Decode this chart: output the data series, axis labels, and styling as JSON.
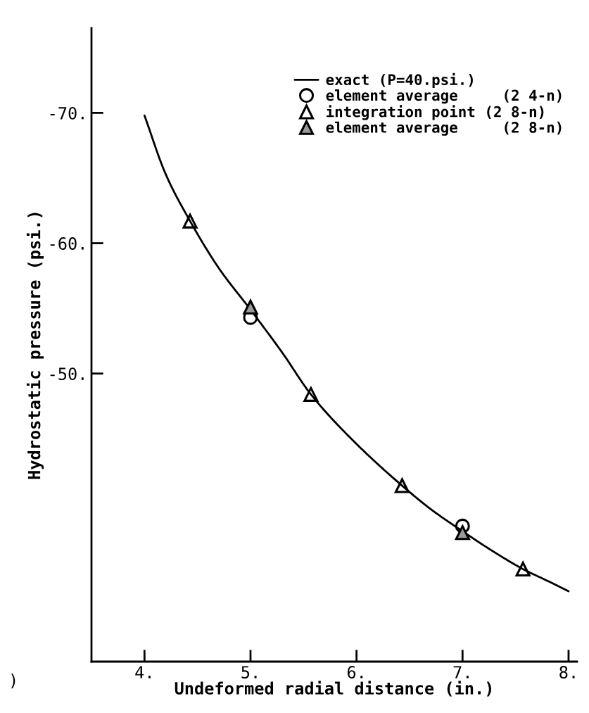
{
  "chart_data": {
    "type": "line",
    "xlabel": "Undeformed radial distance (in.)",
    "ylabel": "Hydrostatic pressure (psi.)",
    "xlim": [
      3.5,
      8.08
    ],
    "ylim": [
      -27.9,
      -76.5
    ],
    "xticks": [
      {
        "value": 4,
        "label": "4."
      },
      {
        "value": 5,
        "label": "5."
      },
      {
        "value": 6,
        "label": "6."
      },
      {
        "value": 7,
        "label": "7."
      },
      {
        "value": 8,
        "label": "8."
      }
    ],
    "yticks": [
      {
        "value": -70,
        "label": "-70."
      },
      {
        "value": -60,
        "label": "-60."
      },
      {
        "value": -50,
        "label": "-50."
      }
    ],
    "grid": false,
    "legend": "top right",
    "series": [
      {
        "name": "exact (P=40.psi.)",
        "color": "#000000",
        "marker": "none",
        "line_style": "solid",
        "x": [
          4.0,
          4.2,
          4.43,
          4.7,
          5.0,
          5.3,
          5.57,
          6.0,
          6.43,
          6.7,
          7.0,
          7.3,
          7.57,
          7.8,
          8.0
        ],
        "values": [
          -69.8,
          -65.3,
          -61.7,
          -58.1,
          -54.9,
          -51.6,
          -48.4,
          -44.6,
          -41.4,
          -39.6,
          -37.9,
          -36.3,
          -35.0,
          -34.1,
          -33.3
        ]
      },
      {
        "name": "element average     (2 4-n)",
        "type": "scatter",
        "color": "#000000",
        "marker": "circle",
        "x": [
          5.0,
          7.0
        ],
        "values": [
          -54.3,
          -38.3
        ]
      },
      {
        "name": "integration point (2 8-n)",
        "type": "scatter",
        "color": "#000000",
        "marker": "triangle",
        "x": [
          4.43,
          5.57,
          6.43,
          7.57
        ],
        "values": [
          -61.7,
          -48.4,
          -41.4,
          -35.0
        ]
      },
      {
        "name": "element average     (2 8-n)",
        "type": "scatter",
        "color": "#9a9a9a",
        "marker": "triangle",
        "x": [
          5.0,
          7.0
        ],
        "values": [
          -55.1,
          -37.8
        ]
      }
    ],
    "annotations": [
      ")"
    ]
  }
}
